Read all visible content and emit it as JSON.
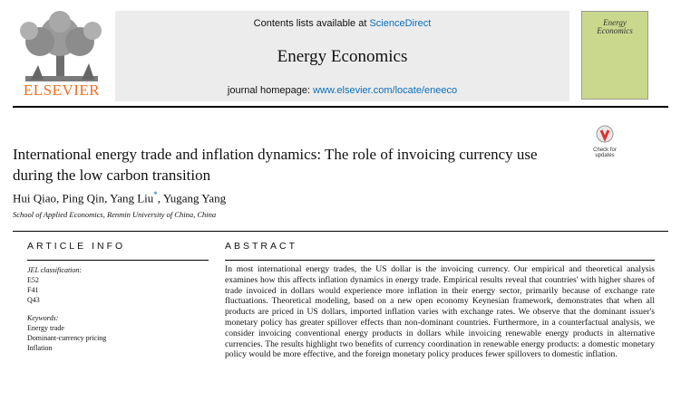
{
  "header": {
    "publisher": "ELSEVIER",
    "contents_prefix": "Contents lists available at ",
    "contents_link": "ScienceDirect",
    "journal": "Energy Economics",
    "homepage_prefix": "journal homepage: ",
    "homepage_link": "www.elsevier.com/locate/eneeco",
    "cover_title": "Energy Economics",
    "check_updates": "Check for updates"
  },
  "article": {
    "title": "International energy trade and inflation dynamics: The role of invoicing currency use during the low carbon transition",
    "authors_line": [
      "Hui Qiao, Ping Qin, Yang Liu",
      "*",
      ", Yugang Yang"
    ],
    "affiliation": "School of Applied Economics, Renmin University of China, China"
  },
  "article_info": {
    "heading": "ARTICLE INFO",
    "jel_label": "JEL classification:",
    "jel": [
      "E52",
      "F41",
      "Q43"
    ],
    "keywords_label": "Keywords:",
    "keywords": [
      "Energy trade",
      "Dominant-currency pricing",
      "Inflation"
    ]
  },
  "abstract": {
    "heading": "ABSTRACT",
    "text": "In most international energy trades, the US dollar is the invoicing currency. Our empirical and theoretical analysis examines how this affects inflation dynamics in energy trade. Empirical results reveal that countries' with higher shares of trade invoiced in dollars would experience more inflation in their energy sector, primarily because of exchange rate fluctuations. Theoretical modeling, based on a new open economy Keynesian framework, demonstrates that when all products are priced in US dollars, imported inflation varies with exchange rates. We observe that the dominant issuer's monetary policy has greater spillover effects than non-dominant countries. Furthermore, in a counterfactual analysis, we consider invoicing conventional energy products in dollars while invoicing renewable energy products in alternative currencies. The results highlight two benefits of currency coordination in renewable energy products: a domestic monetary policy would be more effective, and the foreign monetary policy produces fewer spillovers to domestic inflation."
  }
}
